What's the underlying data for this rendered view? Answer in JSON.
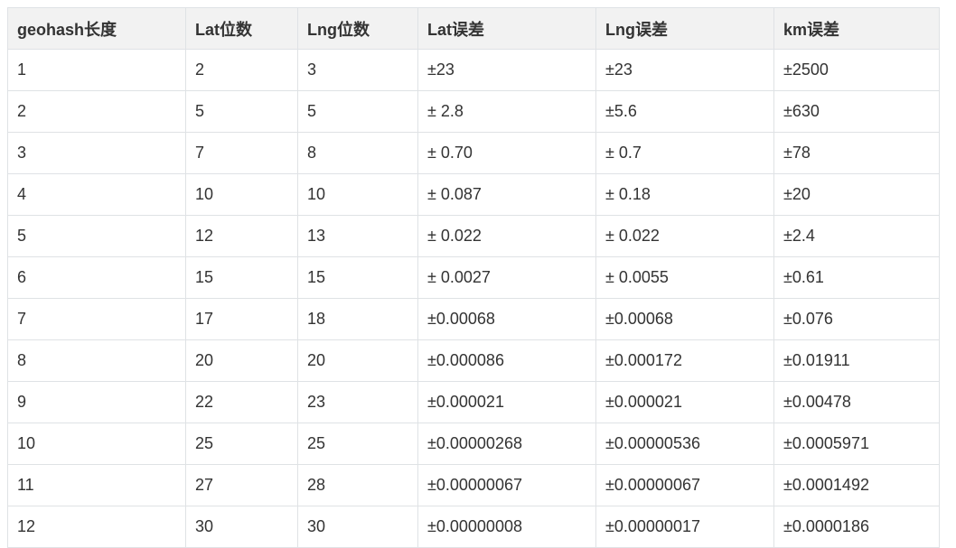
{
  "table": {
    "headers": [
      "geohash长度",
      "Lat位数",
      "Lng位数",
      "Lat误差",
      "Lng误差",
      "km误差"
    ],
    "rows": [
      [
        "1",
        "2",
        "3",
        "±23",
        "±23",
        "±2500"
      ],
      [
        "2",
        "5",
        "5",
        "± 2.8",
        "±5.6",
        "±630"
      ],
      [
        "3",
        "7",
        "8",
        "± 0.70",
        "± 0.7",
        "±78"
      ],
      [
        "4",
        "10",
        "10",
        "± 0.087",
        "± 0.18",
        "±20"
      ],
      [
        "5",
        "12",
        "13",
        "± 0.022",
        "± 0.022",
        "±2.4"
      ],
      [
        "6",
        "15",
        "15",
        "± 0.0027",
        "± 0.0055",
        "±0.61"
      ],
      [
        "7",
        "17",
        "18",
        "±0.00068",
        "±0.00068",
        "±0.076"
      ],
      [
        "8",
        "20",
        "20",
        "±0.000086",
        "±0.000172",
        "±0.01911"
      ],
      [
        "9",
        "22",
        "23",
        "±0.000021",
        "±0.000021",
        "±0.00478"
      ],
      [
        "10",
        "25",
        "25",
        "±0.00000268",
        "±0.00000536",
        "±0.0005971"
      ],
      [
        "11",
        "27",
        "28",
        "±0.00000067",
        "±0.00000067",
        "±0.0001492"
      ],
      [
        "12",
        "30",
        "30",
        "±0.00000008",
        "±0.00000017",
        "±0.0000186"
      ]
    ]
  }
}
